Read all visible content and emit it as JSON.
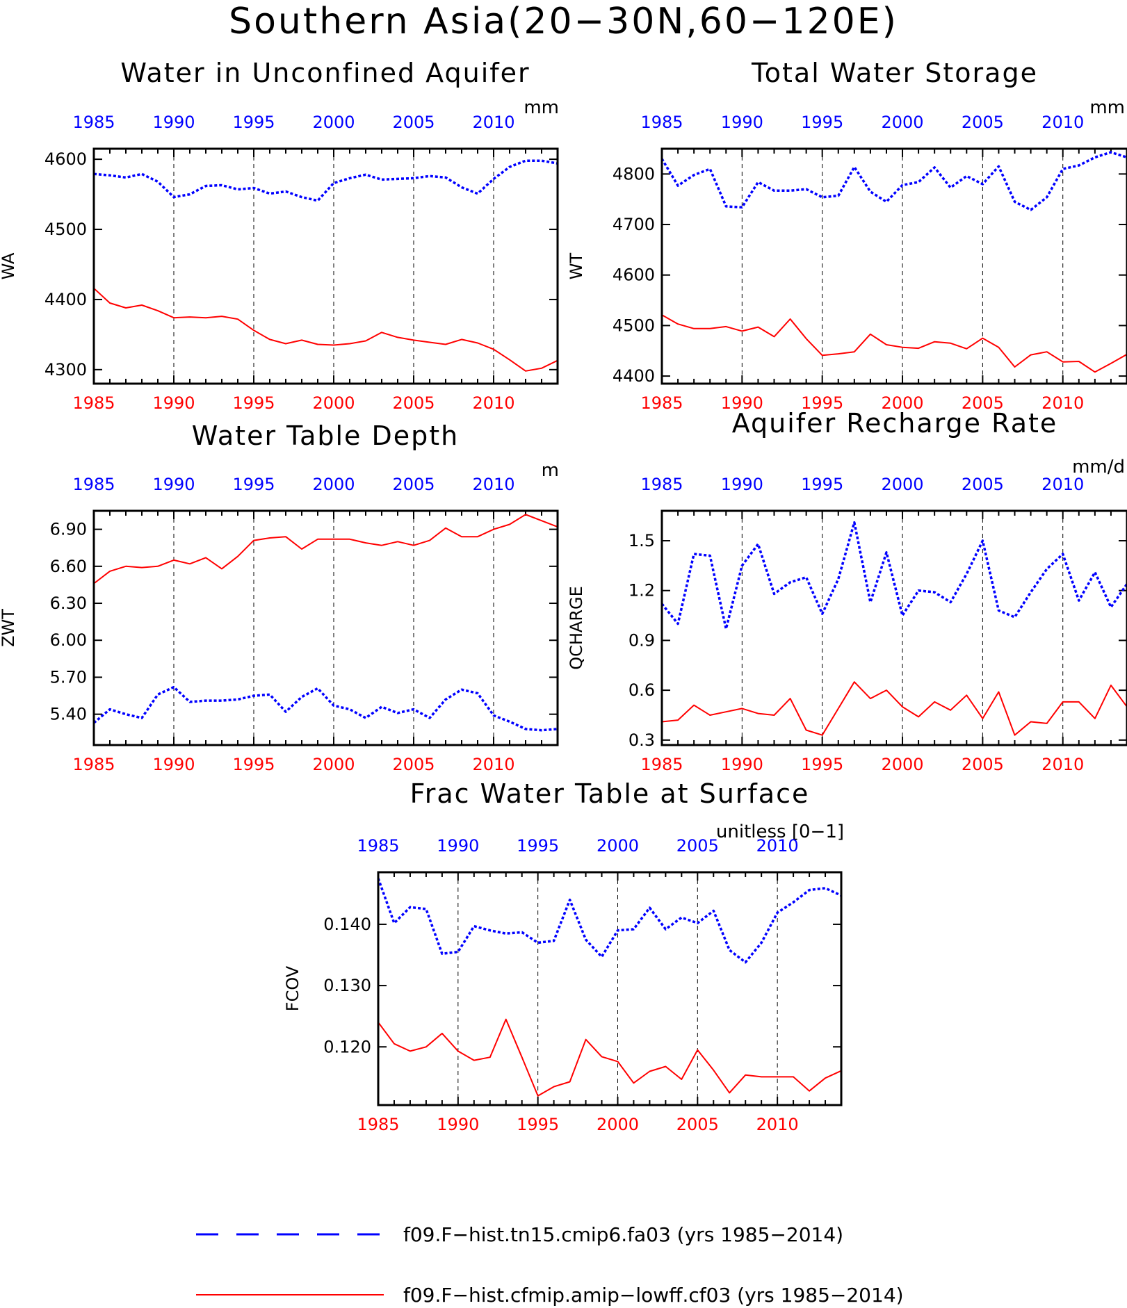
{
  "page_title": "Southern Asia(20−30N,60−120E)",
  "colors": {
    "series_a": "#0000ff",
    "series_b": "#ff0000",
    "axis": "#000000"
  },
  "legend": [
    {
      "label": "f09.F−hist.tn15.cmip6.fa03 (yrs 1985−2014)",
      "color": "#0000ff",
      "style": "dashed"
    },
    {
      "label": "f09.F−hist.cfmip.amip−lowff.cf03 (yrs 1985−2014)",
      "color": "#ff0000",
      "style": "solid"
    }
  ],
  "chart_data": [
    {
      "type": "line",
      "title": "Water in Unconfined Aquifer",
      "ylabel": "WA",
      "unit": "mm",
      "xlim": [
        1985,
        2014
      ],
      "ylim": [
        4280,
        4615
      ],
      "yticks": [
        4300,
        4400,
        4500,
        4600
      ],
      "ytick_labels": [
        "4300",
        "4400",
        "4500",
        "4600"
      ],
      "xticks": [
        1985,
        1990,
        1995,
        2000,
        2005,
        2010
      ],
      "xtick_labels": [
        "1985",
        "1990",
        "1995",
        "2000",
        "2005",
        "2010"
      ],
      "grid": "dashed vertical lines at 1990, 1995, 2000, 2005, 2010",
      "x": [
        1985,
        1986,
        1987,
        1988,
        1989,
        1990,
        1991,
        1992,
        1993,
        1994,
        1995,
        1996,
        1997,
        1998,
        1999,
        2000,
        2001,
        2002,
        2003,
        2004,
        2005,
        2006,
        2007,
        2008,
        2009,
        2010,
        2011,
        2012,
        2013,
        2014
      ],
      "series": [
        {
          "values": [
            4579,
            4577,
            4574,
            4579,
            4568,
            4546,
            4550,
            4562,
            4563,
            4557,
            4559,
            4551,
            4554,
            4546,
            4541,
            4566,
            4573,
            4578,
            4571,
            4572,
            4573,
            4576,
            4574,
            4560,
            4551,
            4572,
            4589,
            4598,
            4598,
            4594
          ]
        },
        {
          "values": [
            4416,
            4395,
            4388,
            4392,
            4384,
            4374,
            4375,
            4374,
            4376,
            4372,
            4356,
            4343,
            4337,
            4342,
            4336,
            4335,
            4337,
            4341,
            4353,
            4346,
            4342,
            4339,
            4336,
            4343,
            4338,
            4329,
            4314,
            4298,
            4302,
            4313
          ]
        }
      ]
    },
    {
      "type": "line",
      "title": "Total Water Storage",
      "ylabel": "WT",
      "unit": "mm",
      "xlim": [
        1985,
        2014
      ],
      "ylim": [
        4385,
        4850
      ],
      "yticks": [
        4400,
        4500,
        4600,
        4700,
        4800
      ],
      "ytick_labels": [
        "4400",
        "4500",
        "4600",
        "4700",
        "4800"
      ],
      "xticks": [
        1985,
        1990,
        1995,
        2000,
        2005,
        2010
      ],
      "xtick_labels": [
        "1985",
        "1990",
        "1995",
        "2000",
        "2005",
        "2010"
      ],
      "grid": "dashed vertical lines at 1990, 1995, 2000, 2005, 2010",
      "x": [
        1985,
        1986,
        1987,
        1988,
        1989,
        1990,
        1991,
        1992,
        1993,
        1994,
        1995,
        1996,
        1997,
        1998,
        1999,
        2000,
        2001,
        2002,
        2003,
        2004,
        2005,
        2006,
        2007,
        2008,
        2009,
        2010,
        2011,
        2012,
        2013,
        2014
      ],
      "series": [
        {
          "values": [
            4830,
            4777,
            4798,
            4810,
            4736,
            4734,
            4784,
            4767,
            4767,
            4770,
            4754,
            4757,
            4814,
            4765,
            4745,
            4778,
            4784,
            4813,
            4773,
            4796,
            4780,
            4815,
            4745,
            4729,
            4754,
            4810,
            4817,
            4833,
            4843,
            4833
          ]
        },
        {
          "values": [
            4521,
            4503,
            4494,
            4494,
            4498,
            4489,
            4497,
            4478,
            4513,
            4474,
            4441,
            4444,
            4448,
            4483,
            4462,
            4457,
            4455,
            4468,
            4465,
            4454,
            4475,
            4457,
            4418,
            4442,
            4448,
            4428,
            4429,
            4408,
            4425,
            4443
          ]
        }
      ]
    },
    {
      "type": "line",
      "title": "Water Table Depth",
      "ylabel": "ZWT",
      "unit": "m",
      "xlim": [
        1985,
        2014
      ],
      "ylim": [
        5.15,
        7.05
      ],
      "yticks": [
        5.4,
        5.7,
        6.0,
        6.3,
        6.6,
        6.9
      ],
      "ytick_labels": [
        "5.40",
        "5.70",
        "6.00",
        "6.30",
        "6.60",
        "6.90"
      ],
      "xticks": [
        1985,
        1990,
        1995,
        2000,
        2005,
        2010
      ],
      "xtick_labels": [
        "1985",
        "1990",
        "1995",
        "2000",
        "2005",
        "2010"
      ],
      "grid": "dashed vertical lines at 1990, 1995, 2000, 2005, 2010",
      "x": [
        1985,
        1986,
        1987,
        1988,
        1989,
        1990,
        1991,
        1992,
        1993,
        1994,
        1995,
        1996,
        1997,
        1998,
        1999,
        2000,
        2001,
        2002,
        2003,
        2004,
        2005,
        2006,
        2007,
        2008,
        2009,
        2010,
        2011,
        2012,
        2013,
        2014
      ],
      "series": [
        {
          "values": [
            5.33,
            5.44,
            5.4,
            5.37,
            5.56,
            5.62,
            5.5,
            5.51,
            5.51,
            5.52,
            5.55,
            5.56,
            5.42,
            5.54,
            5.61,
            5.47,
            5.44,
            5.37,
            5.46,
            5.41,
            5.44,
            5.37,
            5.52,
            5.6,
            5.57,
            5.39,
            5.34,
            5.28,
            5.27,
            5.28
          ]
        },
        {
          "values": [
            6.46,
            6.56,
            6.6,
            6.59,
            6.6,
            6.65,
            6.62,
            6.67,
            6.58,
            6.68,
            6.81,
            6.83,
            6.84,
            6.74,
            6.82,
            6.82,
            6.82,
            6.79,
            6.77,
            6.8,
            6.77,
            6.81,
            6.91,
            6.84,
            6.84,
            6.9,
            6.94,
            7.02,
            6.97,
            6.92
          ]
        }
      ]
    },
    {
      "type": "line",
      "title": "Aquifer Recharge Rate",
      "ylabel": "QCHARGE",
      "unit": "mm/d",
      "xlim": [
        1985,
        2014
      ],
      "ylim": [
        0.27,
        1.68
      ],
      "yticks": [
        0.3,
        0.6,
        0.9,
        1.2,
        1.5
      ],
      "ytick_labels": [
        "0.3",
        "0.6",
        "0.9",
        "1.2",
        "1.5"
      ],
      "xticks": [
        1985,
        1990,
        1995,
        2000,
        2005,
        2010
      ],
      "xtick_labels": [
        "1985",
        "1990",
        "1995",
        "2000",
        "2005",
        "2010"
      ],
      "grid": "dashed vertical lines at 1990, 1995, 2000, 2005, 2010",
      "x": [
        1985,
        1986,
        1987,
        1988,
        1989,
        1990,
        1991,
        1992,
        1993,
        1994,
        1995,
        1996,
        1997,
        1998,
        1999,
        2000,
        2001,
        2002,
        2003,
        2004,
        2005,
        2006,
        2007,
        2008,
        2009,
        2010,
        2011,
        2012,
        2013,
        2014
      ],
      "series": [
        {
          "values": [
            1.12,
            1.0,
            1.42,
            1.41,
            0.97,
            1.35,
            1.48,
            1.18,
            1.25,
            1.28,
            1.06,
            1.27,
            1.61,
            1.13,
            1.43,
            1.05,
            1.2,
            1.19,
            1.13,
            1.3,
            1.5,
            1.08,
            1.04,
            1.19,
            1.33,
            1.42,
            1.14,
            1.31,
            1.1,
            1.24
          ]
        },
        {
          "values": [
            0.41,
            0.42,
            0.51,
            0.45,
            0.47,
            0.49,
            0.46,
            0.45,
            0.55,
            0.36,
            0.33,
            0.49,
            0.65,
            0.55,
            0.6,
            0.5,
            0.44,
            0.53,
            0.48,
            0.57,
            0.43,
            0.59,
            0.33,
            0.41,
            0.4,
            0.53,
            0.53,
            0.43,
            0.63,
            0.5
          ]
        }
      ]
    },
    {
      "type": "line",
      "title": "Frac Water Table at Surface",
      "ylabel": "FCOV",
      "unit": "unitless [0−1]",
      "xlim": [
        1985,
        2014
      ],
      "ylim": [
        0.1105,
        0.1485
      ],
      "yticks": [
        0.12,
        0.13,
        0.14
      ],
      "ytick_labels": [
        "0.120",
        "0.130",
        "0.140"
      ],
      "xticks": [
        1985,
        1990,
        1995,
        2000,
        2005,
        2010
      ],
      "xtick_labels": [
        "1985",
        "1990",
        "1995",
        "2000",
        "2005",
        "2010"
      ],
      "grid": "dashed vertical lines at 1990, 1995, 2000, 2005, 2010",
      "x": [
        1985,
        1986,
        1987,
        1988,
        1989,
        1990,
        1991,
        1992,
        1993,
        1994,
        1995,
        1996,
        1997,
        1998,
        1999,
        2000,
        2001,
        2002,
        2003,
        2004,
        2005,
        2006,
        2007,
        2008,
        2009,
        2010,
        2011,
        2012,
        2013,
        2014
      ],
      "series": [
        {
          "values": [
            0.1475,
            0.1402,
            0.1428,
            0.1425,
            0.1352,
            0.1355,
            0.1397,
            0.139,
            0.1385,
            0.1387,
            0.137,
            0.1373,
            0.144,
            0.1375,
            0.1347,
            0.139,
            0.1392,
            0.1427,
            0.1392,
            0.1411,
            0.1402,
            0.1422,
            0.1358,
            0.1338,
            0.137,
            0.1419,
            0.1436,
            0.1456,
            0.1459,
            0.1447
          ]
        },
        {
          "values": [
            0.124,
            0.1205,
            0.1193,
            0.12,
            0.1222,
            0.1193,
            0.1178,
            0.1183,
            0.1245,
            0.1183,
            0.112,
            0.1135,
            0.1143,
            0.1212,
            0.1184,
            0.1176,
            0.1141,
            0.116,
            0.1168,
            0.1147,
            0.1195,
            0.1162,
            0.1125,
            0.1154,
            0.1151,
            0.1151,
            0.1151,
            0.1128,
            0.1149,
            0.1161
          ]
        }
      ]
    }
  ]
}
